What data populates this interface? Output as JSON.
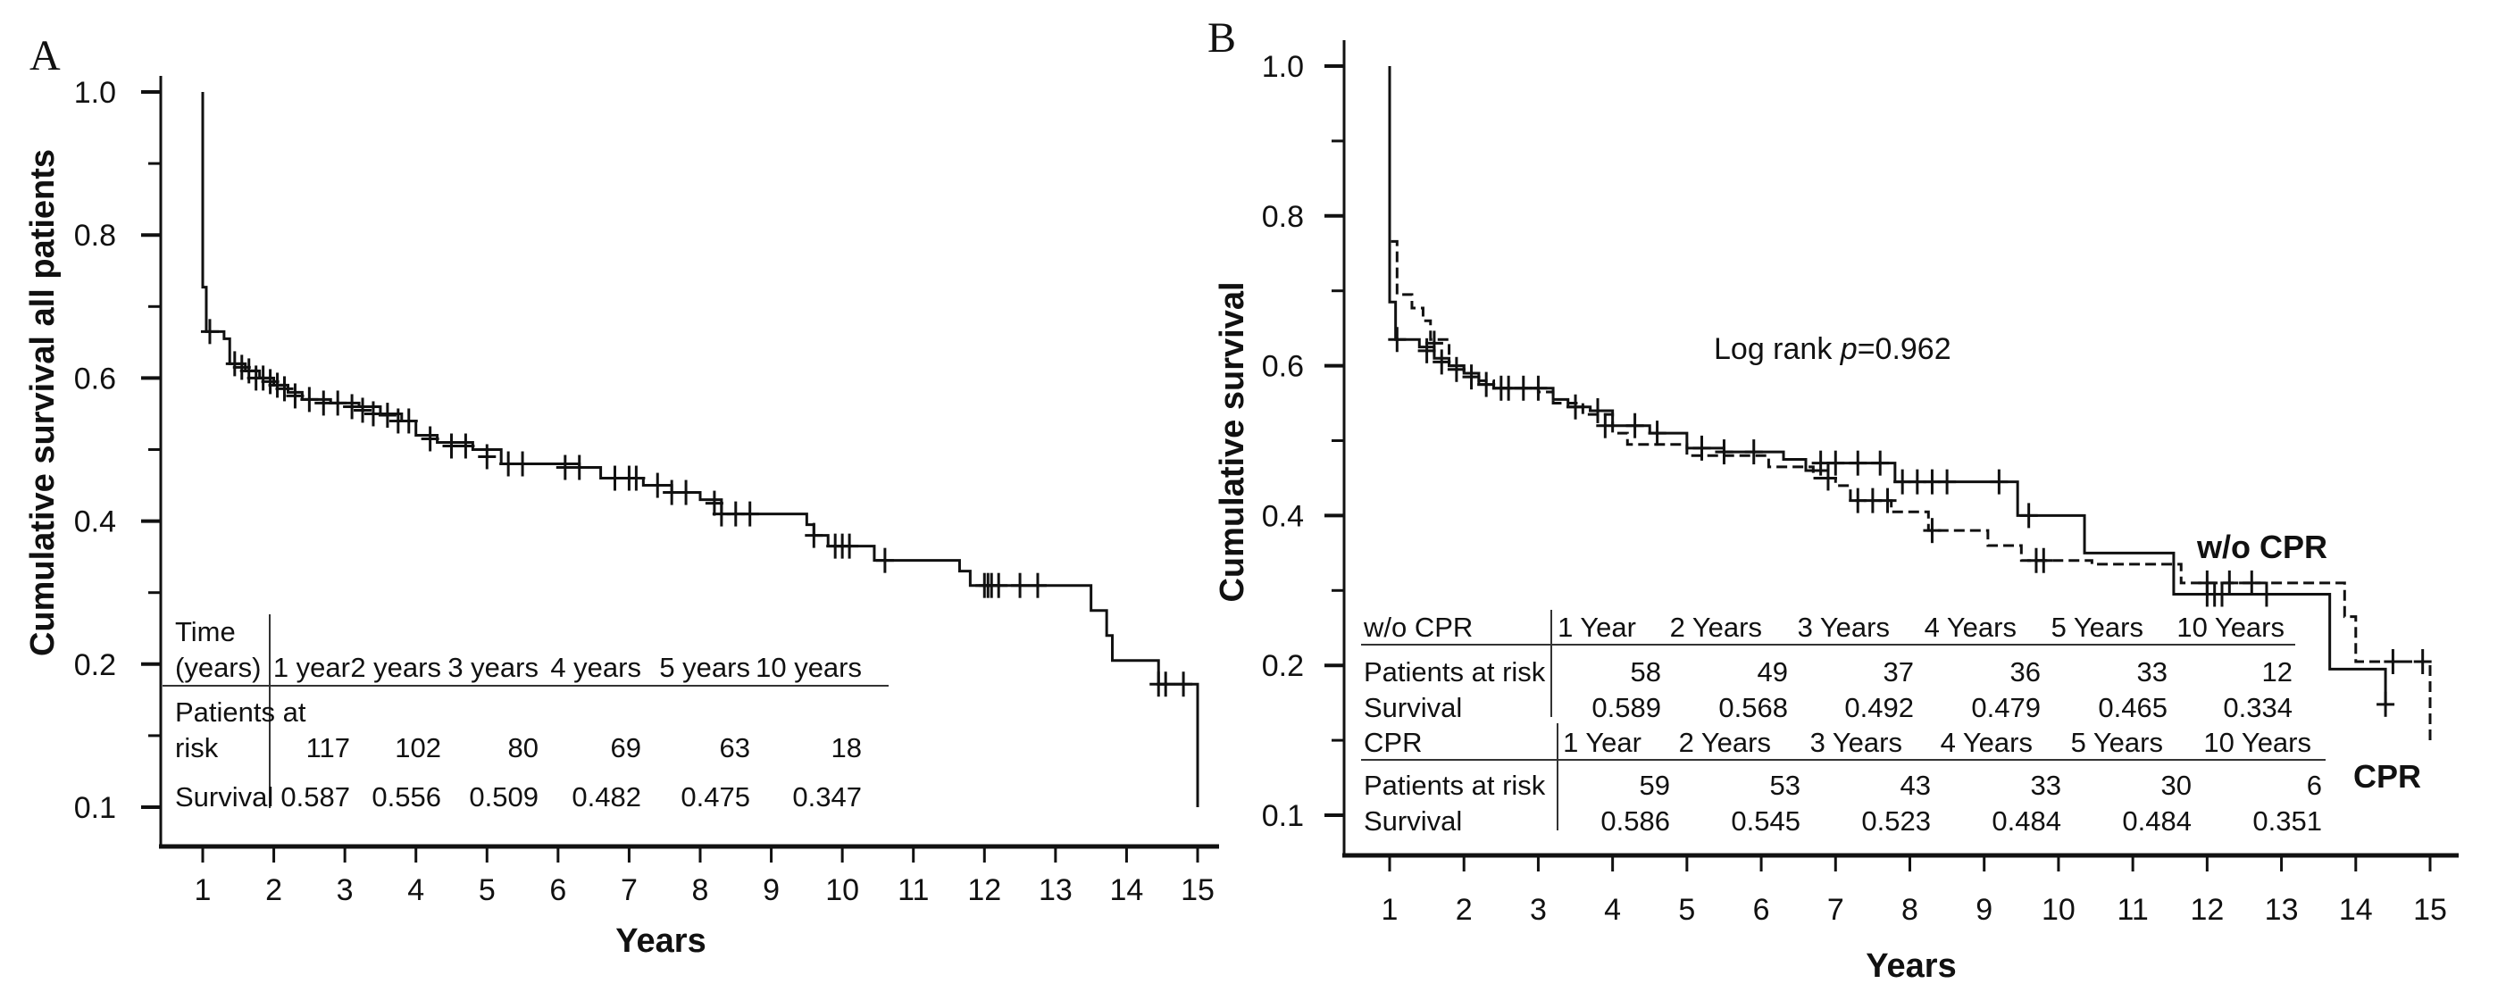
{
  "chart_data": [
    {
      "type": "line",
      "panel_label": "A",
      "title": "",
      "xlabel": "Years",
      "ylabel": "Cumulative survival all patients",
      "x_ticks": [
        "1",
        "2",
        "3",
        "4",
        "5",
        "6",
        "7",
        "8",
        "9",
        "10",
        "11",
        "12",
        "13",
        "14",
        "15"
      ],
      "y_tick_labels": [
        "1.0",
        "0.8",
        "0.6",
        "0.4",
        "0.2",
        "0.1"
      ],
      "xlim": [
        1,
        15
      ],
      "ylim": [
        0,
        1
      ],
      "grid": false,
      "series": [
        {
          "name": "All patients",
          "style": "solid",
          "steps": [
            [
              1,
              1.0
            ],
            [
              1,
              0.727
            ],
            [
              1.05,
              0.665
            ],
            [
              1.3,
              0.655
            ],
            [
              1.38,
              0.62
            ],
            [
              1.6,
              0.61
            ],
            [
              1.8,
              0.6
            ],
            [
              2.0,
              0.59
            ],
            [
              2.2,
              0.58
            ],
            [
              2.4,
              0.57
            ],
            [
              2.8,
              0.565
            ],
            [
              3.2,
              0.56
            ],
            [
              3.5,
              0.55
            ],
            [
              3.8,
              0.54
            ],
            [
              4.0,
              0.52
            ],
            [
              4.3,
              0.51
            ],
            [
              4.8,
              0.5
            ],
            [
              5.2,
              0.48
            ],
            [
              6.3,
              0.475
            ],
            [
              6.6,
              0.46
            ],
            [
              7.2,
              0.45
            ],
            [
              7.6,
              0.44
            ],
            [
              8.0,
              0.43
            ],
            [
              8.3,
              0.41
            ],
            [
              9.4,
              0.41
            ],
            [
              9.5,
              0.395
            ],
            [
              9.6,
              0.38
            ],
            [
              9.8,
              0.365
            ],
            [
              10.4,
              0.365
            ],
            [
              10.45,
              0.345
            ],
            [
              11.6,
              0.345
            ],
            [
              11.65,
              0.33
            ],
            [
              11.8,
              0.31
            ],
            [
              13.45,
              0.31
            ],
            [
              13.5,
              0.275
            ],
            [
              13.72,
              0.24
            ],
            [
              13.8,
              0.205
            ],
            [
              14.4,
              0.205
            ],
            [
              14.45,
              0.172
            ],
            [
              15.0,
              0.172
            ],
            [
              15.0,
              0.0
            ]
          ],
          "censors": [
            [
              1.1,
              0.665
            ],
            [
              1.45,
              0.62
            ],
            [
              1.55,
              0.615
            ],
            [
              1.65,
              0.61
            ],
            [
              1.75,
              0.6
            ],
            [
              1.85,
              0.6
            ],
            [
              1.95,
              0.595
            ],
            [
              2.05,
              0.59
            ],
            [
              2.15,
              0.585
            ],
            [
              2.3,
              0.575
            ],
            [
              2.5,
              0.57
            ],
            [
              2.7,
              0.565
            ],
            [
              2.9,
              0.565
            ],
            [
              3.1,
              0.56
            ],
            [
              3.25,
              0.555
            ],
            [
              3.4,
              0.55
            ],
            [
              3.6,
              0.548
            ],
            [
              3.75,
              0.54
            ],
            [
              3.9,
              0.54
            ],
            [
              4.2,
              0.515
            ],
            [
              4.5,
              0.505
            ],
            [
              4.7,
              0.505
            ],
            [
              5.0,
              0.49
            ],
            [
              5.3,
              0.48
            ],
            [
              5.5,
              0.48
            ],
            [
              6.1,
              0.475
            ],
            [
              6.3,
              0.475
            ],
            [
              6.8,
              0.46
            ],
            [
              7.0,
              0.46
            ],
            [
              7.1,
              0.46
            ],
            [
              7.4,
              0.45
            ],
            [
              7.6,
              0.44
            ],
            [
              7.8,
              0.44
            ],
            [
              8.2,
              0.425
            ],
            [
              8.3,
              0.41
            ],
            [
              8.5,
              0.41
            ],
            [
              8.7,
              0.41
            ],
            [
              9.6,
              0.38
            ],
            [
              9.9,
              0.365
            ],
            [
              10.0,
              0.365
            ],
            [
              10.1,
              0.365
            ],
            [
              10.6,
              0.345
            ],
            [
              12.0,
              0.31
            ],
            [
              12.05,
              0.31
            ],
            [
              12.1,
              0.31
            ],
            [
              12.2,
              0.31
            ],
            [
              12.5,
              0.31
            ],
            [
              12.75,
              0.31
            ],
            [
              14.45,
              0.172
            ],
            [
              14.55,
              0.172
            ],
            [
              14.8,
              0.172
            ]
          ]
        }
      ],
      "risk_table": {
        "header_label_line1": "Time",
        "header_label_line2": "(years)",
        "columns": [
          "1 year",
          "2 years",
          "3 years",
          "4 years",
          "5 years",
          "10 years"
        ],
        "rows": [
          {
            "label_line1": "Patients at",
            "label_line2": "risk",
            "values": [
              "117",
              "102",
              "80",
              "69",
              "63",
              "18"
            ]
          },
          {
            "label_line1": "Survival",
            "label_line2": "",
            "values": [
              "0.587",
              "0.556",
              "0.509",
              "0.482",
              "0.475",
              "0.347"
            ]
          }
        ]
      }
    },
    {
      "type": "line",
      "panel_label": "B",
      "title": "",
      "xlabel": "Years",
      "ylabel": "Cumulative survival",
      "x_ticks": [
        "1",
        "2",
        "3",
        "4",
        "5",
        "6",
        "7",
        "8",
        "9",
        "10",
        "11",
        "12",
        "13",
        "14",
        "15"
      ],
      "y_tick_labels": [
        "1.0",
        "0.8",
        "0.6",
        "0.4",
        "0.2",
        "0.1"
      ],
      "xlim": [
        1,
        15
      ],
      "ylim": [
        0,
        1
      ],
      "grid": false,
      "annotations": {
        "log_rank_prefix": "Log rank ",
        "log_rank_p": "p",
        "log_rank_value": "=0.962",
        "label_wo_cpr": "w/o CPR",
        "label_cpr": "CPR"
      },
      "series": [
        {
          "name": "solid line",
          "style": "solid",
          "steps": [
            [
              1,
              1.0
            ],
            [
              1,
              0.685
            ],
            [
              1.08,
              0.635
            ],
            [
              1.4,
              0.625
            ],
            [
              1.6,
              0.61
            ],
            [
              1.8,
              0.6
            ],
            [
              2.0,
              0.59
            ],
            [
              2.2,
              0.575
            ],
            [
              2.4,
              0.57
            ],
            [
              3.1,
              0.57
            ],
            [
              3.2,
              0.555
            ],
            [
              3.4,
              0.545
            ],
            [
              3.7,
              0.54
            ],
            [
              4.0,
              0.52
            ],
            [
              4.5,
              0.51
            ],
            [
              5.0,
              0.49
            ],
            [
              5.5,
              0.485
            ],
            [
              6.2,
              0.485
            ],
            [
              6.3,
              0.475
            ],
            [
              6.6,
              0.46
            ],
            [
              6.9,
              0.47
            ],
            [
              7.7,
              0.47
            ],
            [
              7.8,
              0.445
            ],
            [
              9.4,
              0.445
            ],
            [
              9.45,
              0.4
            ],
            [
              10.3,
              0.4
            ],
            [
              10.35,
              0.35
            ],
            [
              11.5,
              0.35
            ],
            [
              11.55,
              0.295
            ],
            [
              13.6,
              0.295
            ],
            [
              13.65,
              0.195
            ],
            [
              14.4,
              0.195
            ],
            [
              14.4,
              0.148
            ]
          ],
          "censors": [
            [
              1.1,
              0.635
            ],
            [
              1.5,
              0.62
            ],
            [
              1.7,
              0.605
            ],
            [
              1.9,
              0.595
            ],
            [
              2.1,
              0.585
            ],
            [
              2.3,
              0.575
            ],
            [
              2.6,
              0.57
            ],
            [
              2.8,
              0.57
            ],
            [
              3.0,
              0.57
            ],
            [
              3.5,
              0.545
            ],
            [
              3.8,
              0.54
            ],
            [
              4.3,
              0.52
            ],
            [
              4.6,
              0.51
            ],
            [
              5.2,
              0.49
            ],
            [
              5.5,
              0.485
            ],
            [
              5.9,
              0.485
            ],
            [
              6.8,
              0.47
            ],
            [
              7.0,
              0.47
            ],
            [
              7.3,
              0.47
            ],
            [
              7.6,
              0.47
            ],
            [
              7.9,
              0.445
            ],
            [
              8.1,
              0.445
            ],
            [
              8.3,
              0.445
            ],
            [
              8.5,
              0.445
            ],
            [
              9.2,
              0.445
            ],
            [
              9.6,
              0.4
            ],
            [
              12.0,
              0.295
            ],
            [
              12.1,
              0.295
            ],
            [
              12.2,
              0.295
            ],
            [
              12.8,
              0.295
            ],
            [
              14.4,
              0.148
            ]
          ]
        },
        {
          "name": "dashed line",
          "style": "dashed",
          "steps": [
            [
              1,
              1.0
            ],
            [
              1,
              0.766
            ],
            [
              1.1,
              0.695
            ],
            [
              1.3,
              0.677
            ],
            [
              1.45,
              0.66
            ],
            [
              1.55,
              0.635
            ],
            [
              1.8,
              0.6
            ],
            [
              2.0,
              0.59
            ],
            [
              2.2,
              0.58
            ],
            [
              2.4,
              0.57
            ],
            [
              3.0,
              0.565
            ],
            [
              3.2,
              0.55
            ],
            [
              3.6,
              0.535
            ],
            [
              4.0,
              0.51
            ],
            [
              4.2,
              0.495
            ],
            [
              4.8,
              0.495
            ],
            [
              5.0,
              0.48
            ],
            [
              6.0,
              0.48
            ],
            [
              6.1,
              0.465
            ],
            [
              6.6,
              0.465
            ],
            [
              6.7,
              0.45
            ],
            [
              7.0,
              0.44
            ],
            [
              7.2,
              0.42
            ],
            [
              7.7,
              0.42
            ],
            [
              7.75,
              0.405
            ],
            [
              8.2,
              0.405
            ],
            [
              8.25,
              0.38
            ],
            [
              9.0,
              0.38
            ],
            [
              9.05,
              0.36
            ],
            [
              9.4,
              0.36
            ],
            [
              9.5,
              0.34
            ],
            [
              10.4,
              0.34
            ],
            [
              10.45,
              0.335
            ],
            [
              11.6,
              0.335
            ],
            [
              11.65,
              0.31
            ],
            [
              13.8,
              0.31
            ],
            [
              13.85,
              0.265
            ],
            [
              14.0,
              0.205
            ],
            [
              15.0,
              0.205
            ],
            [
              15.0,
              0.1
            ]
          ],
          "censors": [
            [
              1.6,
              0.63
            ],
            [
              2.5,
              0.57
            ],
            [
              3.9,
              0.52
            ],
            [
              6.9,
              0.45
            ],
            [
              7.3,
              0.42
            ],
            [
              7.5,
              0.42
            ],
            [
              7.7,
              0.42
            ],
            [
              8.3,
              0.38
            ],
            [
              9.7,
              0.34
            ],
            [
              9.8,
              0.34
            ],
            [
              12.0,
              0.31
            ],
            [
              12.3,
              0.31
            ],
            [
              12.6,
              0.31
            ],
            [
              14.5,
              0.205
            ],
            [
              14.9,
              0.205
            ]
          ]
        }
      ],
      "risk_tables": [
        {
          "group": "w/o CPR",
          "columns": [
            "1 Year",
            "2 Years",
            "3 Years",
            "4 Years",
            "5 Years",
            "10 Years"
          ],
          "rows": [
            {
              "label": "Patients at risk",
              "values": [
                "58",
                "49",
                "37",
                "36",
                "33",
                "12"
              ]
            },
            {
              "label": "Survival",
              "values": [
                "0.589",
                "0.568",
                "0.492",
                "0.479",
                "0.465",
                "0.334"
              ]
            }
          ]
        },
        {
          "group": "CPR",
          "columns": [
            "1 Year",
            "2 Years",
            "3 Years",
            "4 Years",
            "5 Years",
            "10 Years"
          ],
          "rows": [
            {
              "label": "Patients at risk",
              "values": [
                "59",
                "53",
                "43",
                "33",
                "30",
                "6"
              ]
            },
            {
              "label": "Survival",
              "values": [
                "0.586",
                "0.545",
                "0.523",
                "0.484",
                "0.484",
                "0.351"
              ]
            }
          ]
        }
      ]
    }
  ]
}
